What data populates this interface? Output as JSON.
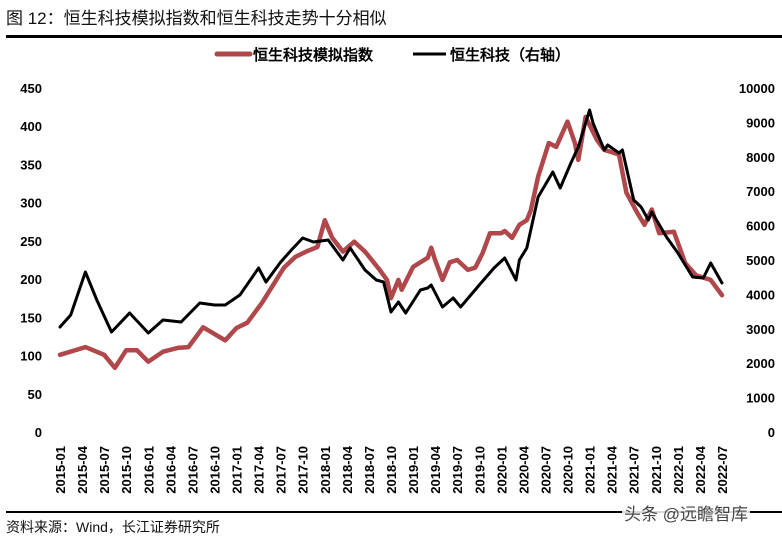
{
  "title": "图 12：恒生科技模拟指数和恒生科技走势十分相似",
  "source": "资料来源：Wind，长江证券研究所",
  "watermark": "头条 @远瞻智库",
  "chart_data": {
    "type": "line",
    "title": "",
    "xlabel": "",
    "ylabel_left": "",
    "ylabel_right": "",
    "x_range": [
      "2015-01",
      "2022-07"
    ],
    "x_ticks": [
      "2015-01",
      "2015-04",
      "2015-07",
      "2015-10",
      "2016-01",
      "2016-04",
      "2016-07",
      "2016-10",
      "2017-01",
      "2017-04",
      "2017-07",
      "2017-10",
      "2018-01",
      "2018-04",
      "2018-07",
      "2018-10",
      "2019-01",
      "2019-04",
      "2019-07",
      "2019-10",
      "2020-01",
      "2020-04",
      "2020-07",
      "2020-10",
      "2021-01",
      "2021-04",
      "2021-07",
      "2021-10",
      "2022-01",
      "2022-04",
      "2022-07"
    ],
    "y_left": {
      "range": [
        0,
        450
      ],
      "ticks": [
        "0",
        "50",
        "100",
        "150",
        "200",
        "250",
        "300",
        "350",
        "400",
        "450"
      ]
    },
    "y_right": {
      "range": [
        0,
        10000
      ],
      "ticks": [
        "0",
        "1000",
        "2000",
        "3000",
        "4000",
        "5000",
        "6000",
        "7000",
        "8000",
        "9000",
        "10000"
      ]
    },
    "grid": false,
    "legend_position": "top-center",
    "series": [
      {
        "name": "恒生科技模拟指数",
        "axis": "left",
        "color": "#b0474b",
        "points": [
          [
            "2015-01-01",
            101
          ],
          [
            "2015-04-15",
            111
          ],
          [
            "2015-07-01",
            101
          ],
          [
            "2015-08-15",
            84
          ],
          [
            "2015-10-01",
            107
          ],
          [
            "2015-11-15",
            107
          ],
          [
            "2016-01-01",
            92
          ],
          [
            "2016-03-01",
            105
          ],
          [
            "2016-05-01",
            110
          ],
          [
            "2016-06-15",
            111
          ],
          [
            "2016-08-15",
            137
          ],
          [
            "2016-11-15",
            120
          ],
          [
            "2017-01-01",
            136
          ],
          [
            "2017-02-15",
            143
          ],
          [
            "2017-04-15",
            169
          ],
          [
            "2017-07-15",
            215
          ],
          [
            "2017-09-01",
            229
          ],
          [
            "2017-10-15",
            236
          ],
          [
            "2017-12-01",
            242
          ],
          [
            "2018-01-01",
            277
          ],
          [
            "2018-02-01",
            254
          ],
          [
            "2018-03-15",
            236
          ],
          [
            "2018-05-01",
            249
          ],
          [
            "2018-06-15",
            236
          ],
          [
            "2018-08-15",
            212
          ],
          [
            "2018-09-15",
            199
          ],
          [
            "2018-10-01",
            175
          ],
          [
            "2018-11-01",
            199
          ],
          [
            "2018-11-15",
            186
          ],
          [
            "2019-01-01",
            216
          ],
          [
            "2019-03-01",
            228
          ],
          [
            "2019-03-15",
            241
          ],
          [
            "2019-04-01",
            225
          ],
          [
            "2019-05-01",
            199
          ],
          [
            "2019-06-01",
            222
          ],
          [
            "2019-07-01",
            225
          ],
          [
            "2019-08-15",
            212
          ],
          [
            "2019-09-15",
            215
          ],
          [
            "2019-10-15",
            234
          ],
          [
            "2019-11-15",
            260
          ],
          [
            "2020-01-01",
            260
          ],
          [
            "2020-01-15",
            263
          ],
          [
            "2020-02-15",
            254
          ],
          [
            "2020-03-15",
            271
          ],
          [
            "2020-04-15",
            277
          ],
          [
            "2020-05-01",
            290
          ],
          [
            "2020-06-01",
            334
          ],
          [
            "2020-07-15",
            378
          ],
          [
            "2020-08-15",
            373
          ],
          [
            "2020-10-01",
            406
          ],
          [
            "2020-11-01",
            378
          ],
          [
            "2020-11-15",
            356
          ],
          [
            "2020-12-15",
            412
          ],
          [
            "2021-02-01",
            382
          ],
          [
            "2021-03-01",
            369
          ],
          [
            "2021-05-01",
            363
          ],
          [
            "2021-06-01",
            313
          ],
          [
            "2021-07-15",
            287
          ],
          [
            "2021-08-15",
            271
          ],
          [
            "2021-09-15",
            291
          ],
          [
            "2021-10-15",
            260
          ],
          [
            "2021-12-15",
            262
          ],
          [
            "2022-02-01",
            221
          ],
          [
            "2022-03-15",
            205
          ],
          [
            "2022-05-15",
            199
          ],
          [
            "2022-07-01",
            179
          ]
        ]
      },
      {
        "name": "恒生科技（右轴）",
        "axis": "right",
        "color": "#000000",
        "points": [
          [
            "2015-01-01",
            3052
          ],
          [
            "2015-02-15",
            3401
          ],
          [
            "2015-04-15",
            4651
          ],
          [
            "2015-06-01",
            3837
          ],
          [
            "2015-08-01",
            2907
          ],
          [
            "2015-10-15",
            3459
          ],
          [
            "2016-01-01",
            2878
          ],
          [
            "2016-03-01",
            3256
          ],
          [
            "2016-05-15",
            3198
          ],
          [
            "2016-08-01",
            3750
          ],
          [
            "2016-10-01",
            3692
          ],
          [
            "2016-11-15",
            3692
          ],
          [
            "2017-01-15",
            3983
          ],
          [
            "2017-04-01",
            4767
          ],
          [
            "2017-05-01",
            4360
          ],
          [
            "2017-07-01",
            4942
          ],
          [
            "2017-08-15",
            5290
          ],
          [
            "2017-10-01",
            5640
          ],
          [
            "2017-11-15",
            5523
          ],
          [
            "2018-01-15",
            5581
          ],
          [
            "2018-03-15",
            5000
          ],
          [
            "2018-04-15",
            5349
          ],
          [
            "2018-06-15",
            4709
          ],
          [
            "2018-08-01",
            4419
          ],
          [
            "2018-09-01",
            4360
          ],
          [
            "2018-10-01",
            3488
          ],
          [
            "2018-11-01",
            3779
          ],
          [
            "2018-12-01",
            3459
          ],
          [
            "2019-02-01",
            4128
          ],
          [
            "2019-03-01",
            4186
          ],
          [
            "2019-03-15",
            4273
          ],
          [
            "2019-05-01",
            3634
          ],
          [
            "2019-06-15",
            3895
          ],
          [
            "2019-07-15",
            3634
          ],
          [
            "2019-10-01",
            4273
          ],
          [
            "2019-12-01",
            4767
          ],
          [
            "2020-01-15",
            5058
          ],
          [
            "2020-03-01",
            4419
          ],
          [
            "2020-03-15",
            5000
          ],
          [
            "2020-04-15",
            5349
          ],
          [
            "2020-06-01",
            6831
          ],
          [
            "2020-08-01",
            7558
          ],
          [
            "2020-09-01",
            7093
          ],
          [
            "2020-10-15",
            7820
          ],
          [
            "2020-11-15",
            8285
          ],
          [
            "2021-01-01",
            9360
          ],
          [
            "2021-01-15",
            8983
          ],
          [
            "2021-03-01",
            8198
          ],
          [
            "2021-03-15",
            8343
          ],
          [
            "2021-05-01",
            8110
          ],
          [
            "2021-05-15",
            8198
          ],
          [
            "2021-07-01",
            6744
          ],
          [
            "2021-08-01",
            6541
          ],
          [
            "2021-09-01",
            6163
          ],
          [
            "2021-09-15",
            6395
          ],
          [
            "2021-11-15",
            5669
          ],
          [
            "2022-01-01",
            5203
          ],
          [
            "2022-03-01",
            4506
          ],
          [
            "2022-04-15",
            4477
          ],
          [
            "2022-05-15",
            4913
          ],
          [
            "2022-07-01",
            4331
          ]
        ]
      }
    ]
  }
}
